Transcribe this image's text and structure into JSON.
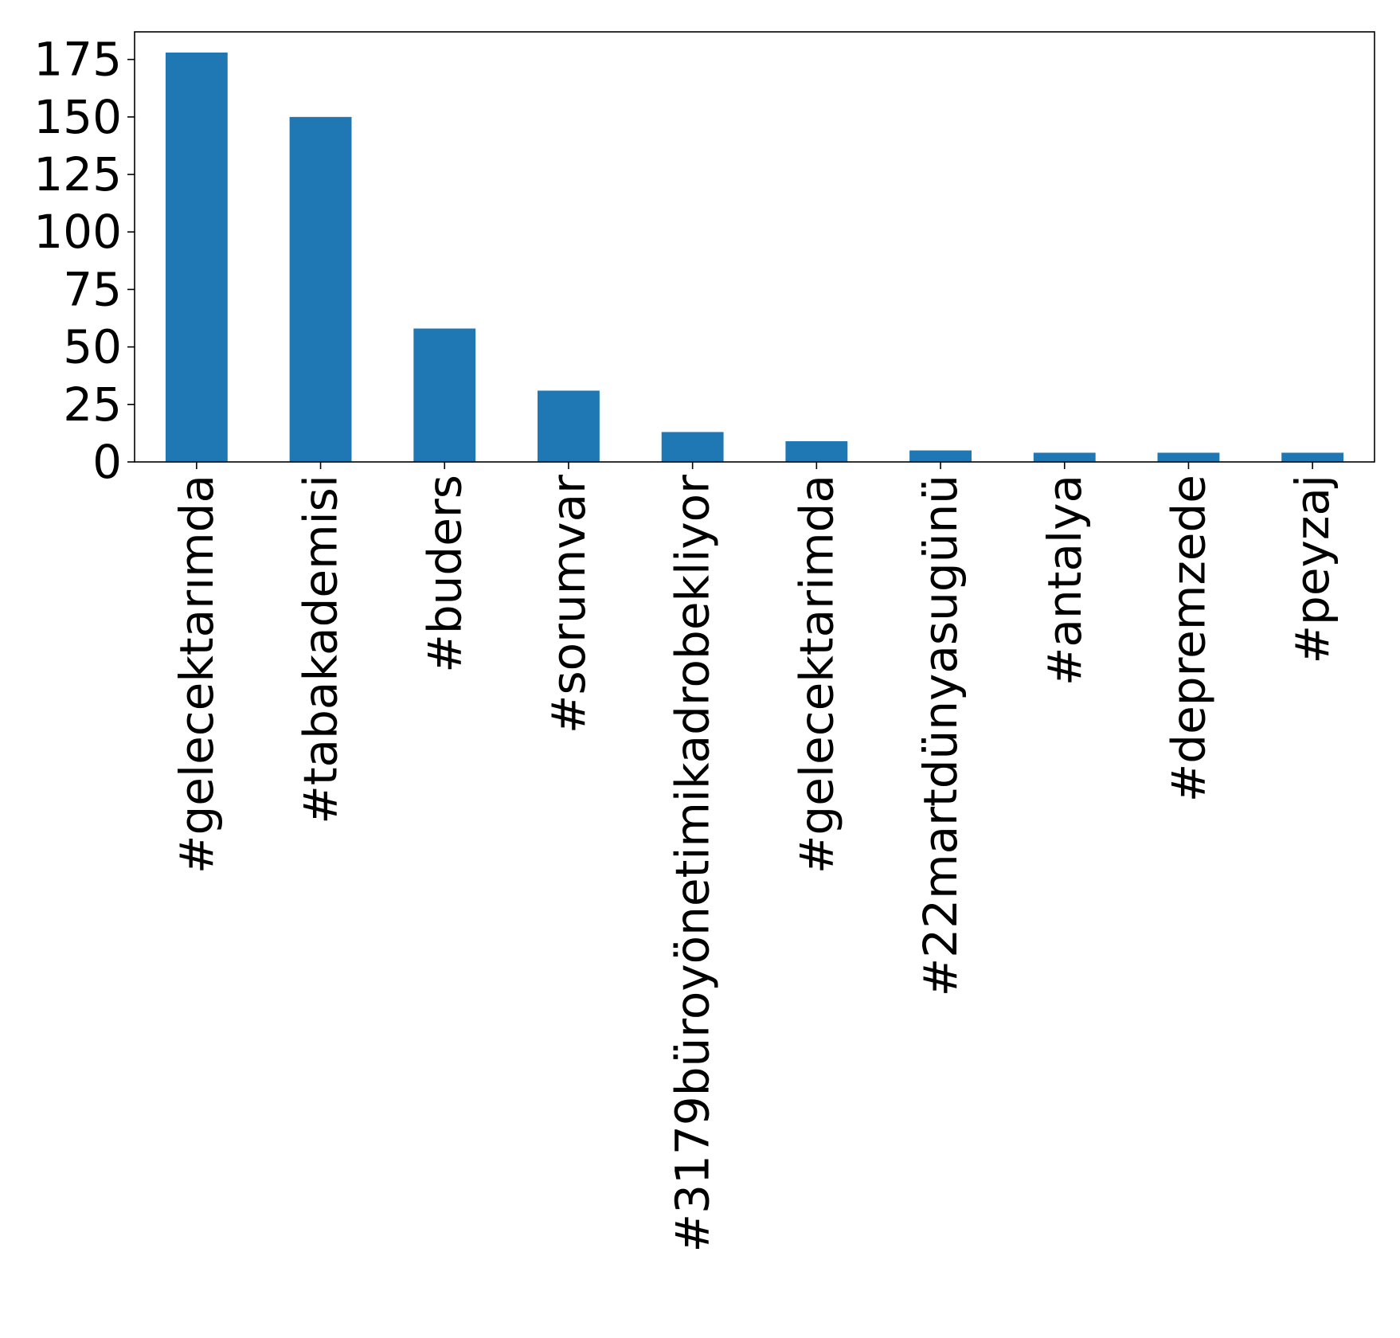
{
  "chart_data": {
    "type": "bar",
    "title": "",
    "xlabel": "",
    "ylabel": "",
    "categories": [
      "#gelecektarımda",
      "#tabakademisi",
      "#buders",
      "#sorumvar",
      "#3179büroyönetimikadrobekliyor",
      "#gelecektarimda",
      "#22martdünyasugünü",
      "#antalya",
      "#depremzede",
      "#peyzaj"
    ],
    "values": [
      178,
      150,
      58,
      31,
      13,
      9,
      5,
      4,
      4,
      4
    ],
    "ylim": [
      0,
      187
    ],
    "yticks": [
      "0",
      "25",
      "50",
      "75",
      "100",
      "125",
      "150",
      "175"
    ],
    "ytick_values": [
      0,
      25,
      50,
      75,
      100,
      125,
      150,
      175
    ],
    "grid": false,
    "legend": "none",
    "bar_color": "#1f77b4"
  }
}
